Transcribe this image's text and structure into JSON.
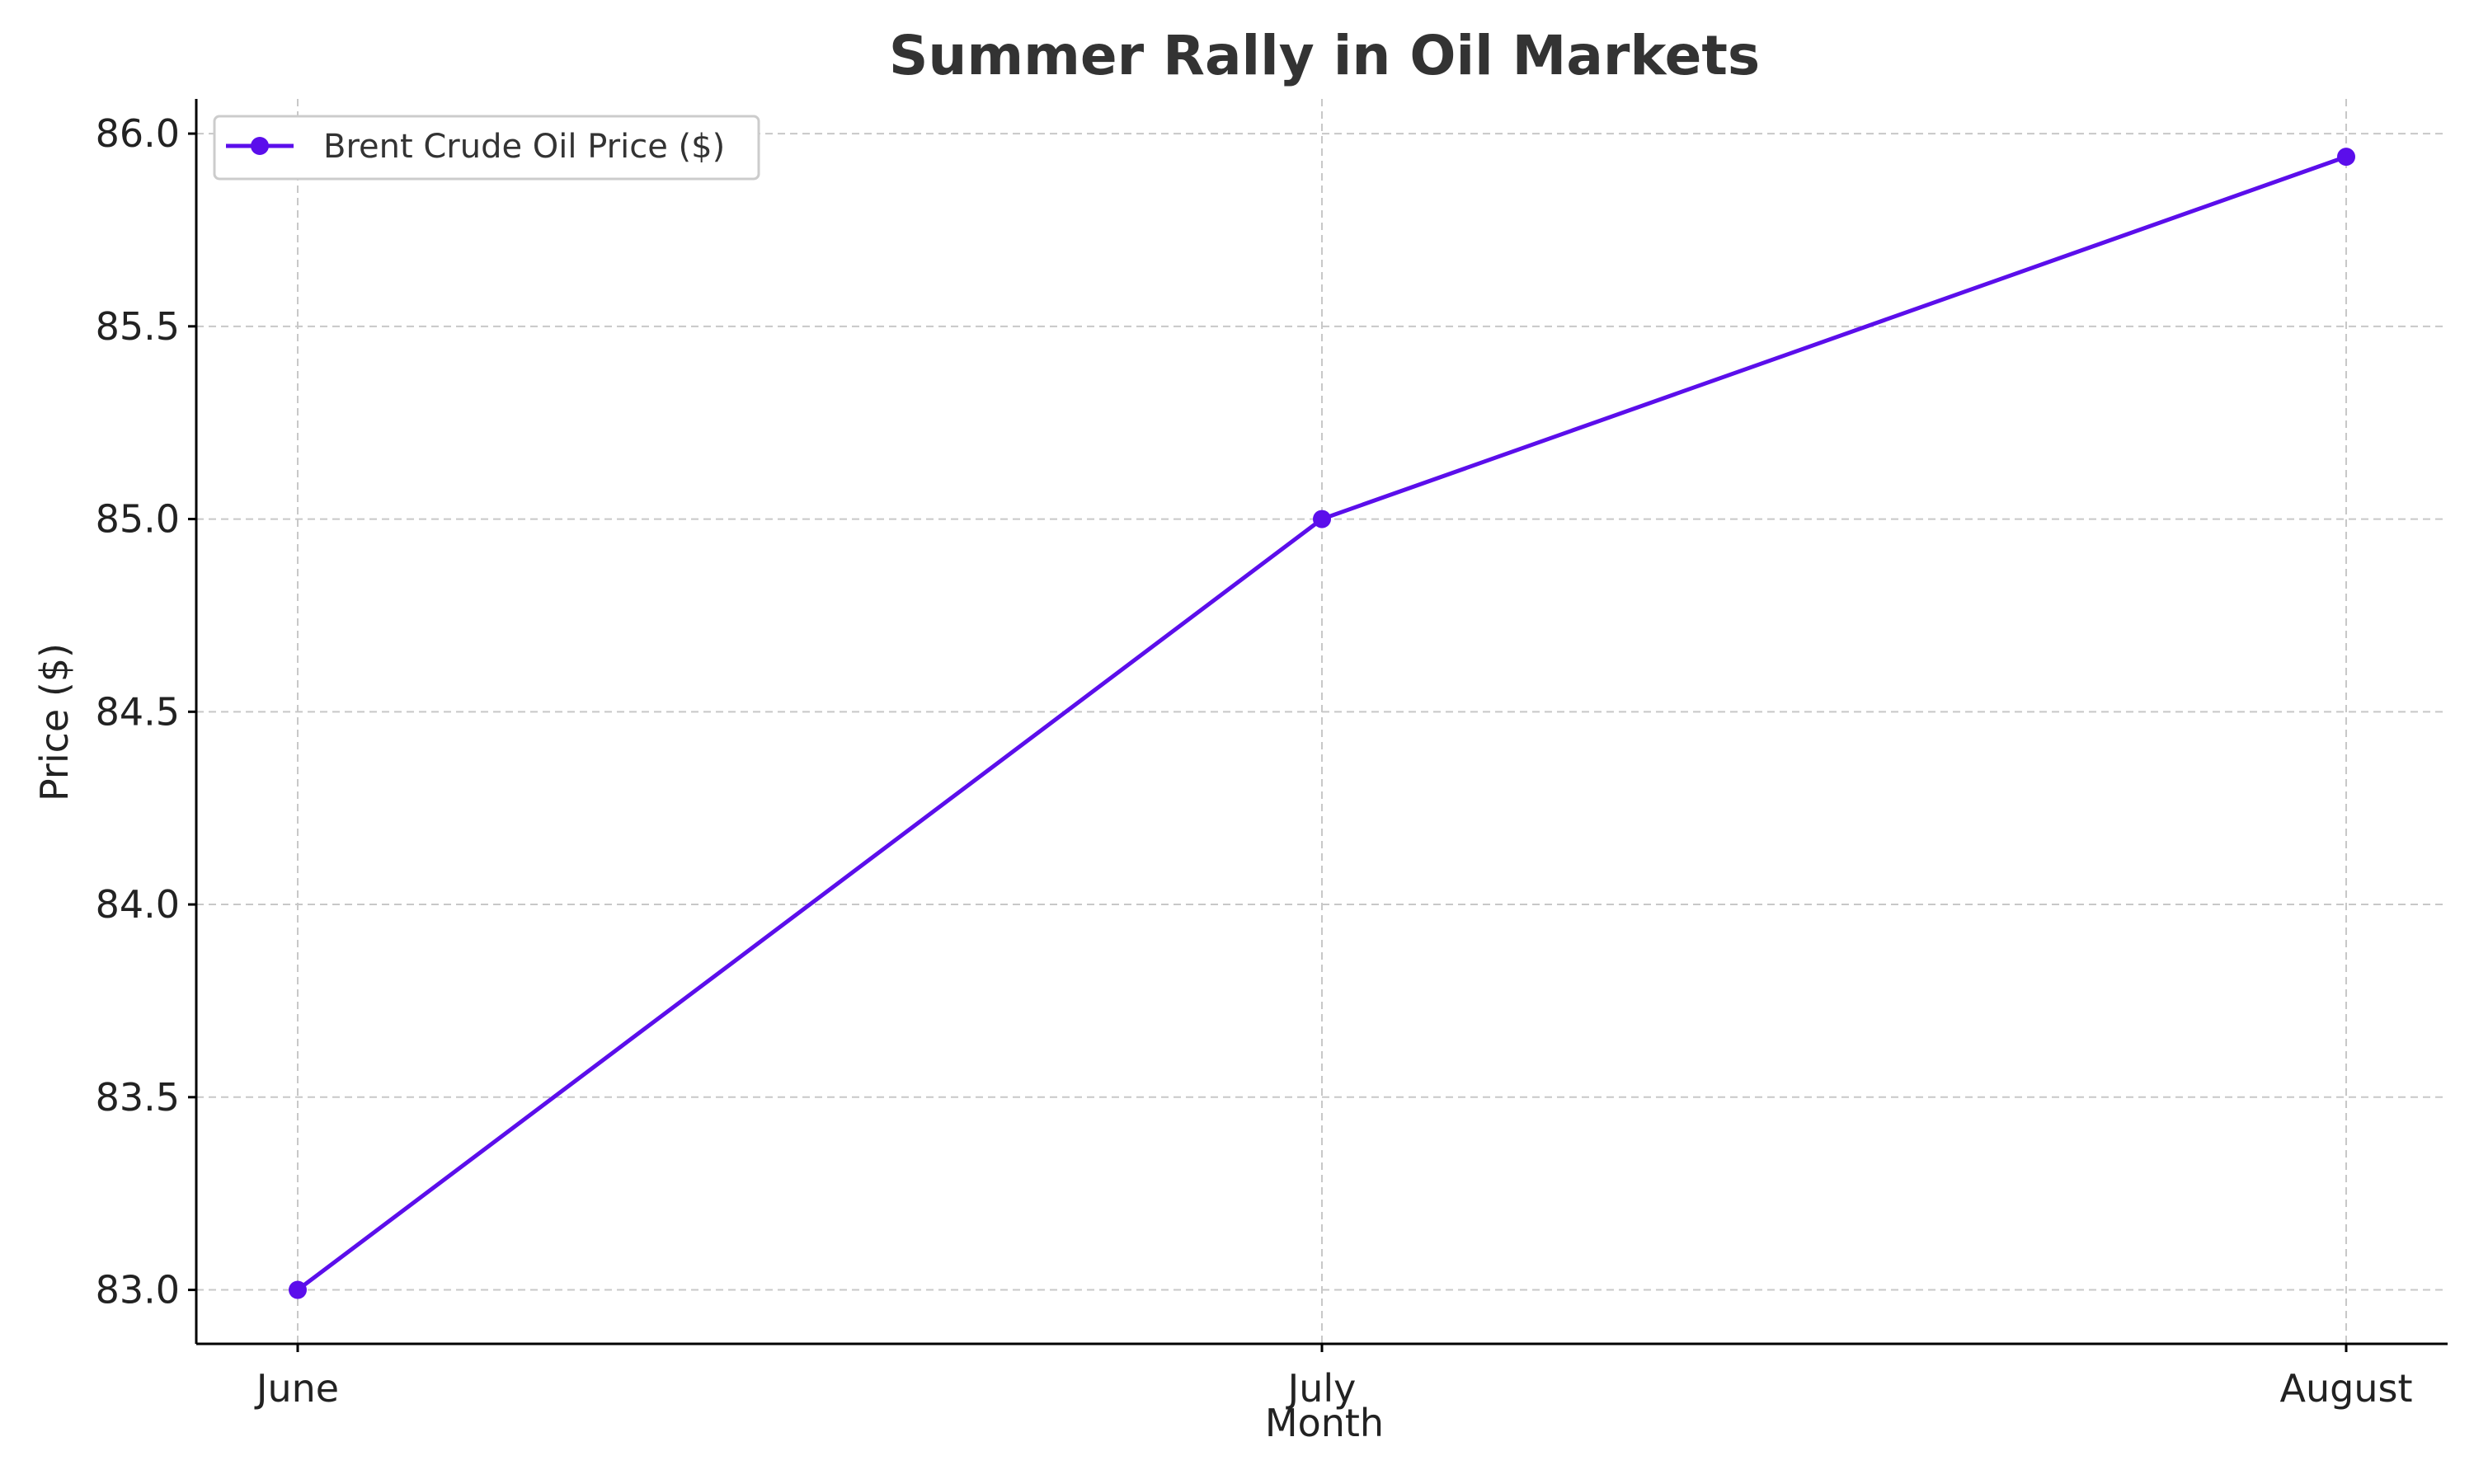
{
  "chart_data": {
    "type": "line",
    "title": "Summer Rally in Oil Markets",
    "xlabel": "Month",
    "ylabel": "Price ($)",
    "categories": [
      "June",
      "July",
      "August"
    ],
    "series": [
      {
        "name": "Brent Crude Oil Price ($)",
        "values": [
          83.0,
          85.0,
          85.94
        ],
        "color": "#5b0eeb",
        "marker": "circle"
      }
    ],
    "ylim": [
      82.86,
      86.09
    ],
    "yticks": [
      83.0,
      83.5,
      84.0,
      84.5,
      85.0,
      85.5,
      86.0
    ],
    "ytick_labels": [
      "83.0",
      "83.5",
      "84.0",
      "84.5",
      "85.0",
      "85.5",
      "86.0"
    ],
    "grid": true,
    "grid_style": "dashed",
    "legend_position": "top-left"
  }
}
